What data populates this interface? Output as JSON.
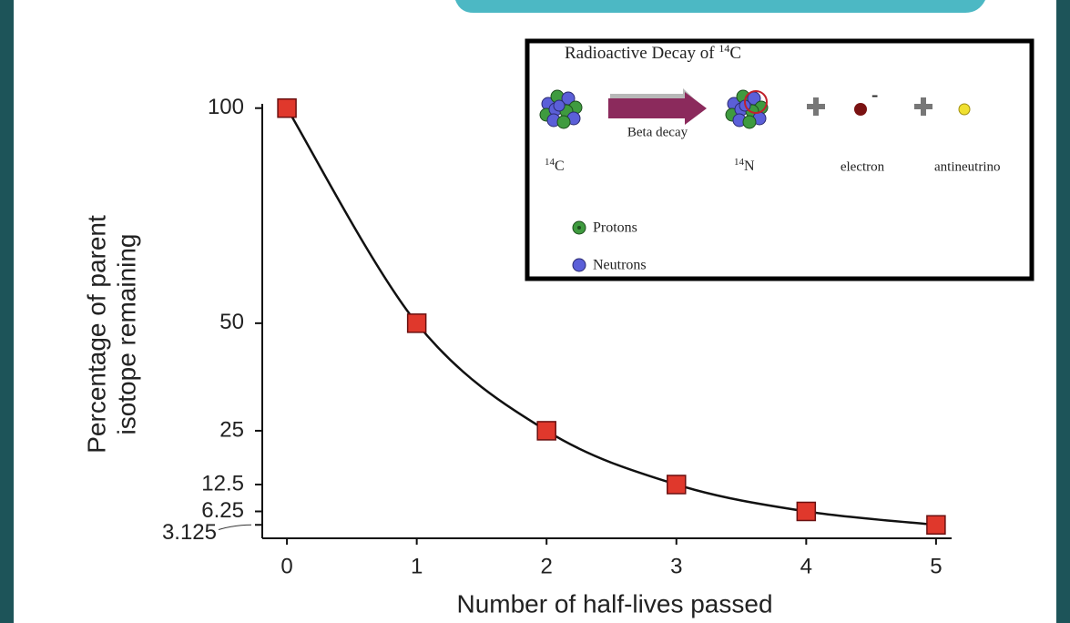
{
  "chart_data": {
    "type": "line",
    "x_label": "Number of half-lives passed",
    "y_label": [
      "Percentage of parent",
      "isotope remaining"
    ],
    "x": [
      0,
      1,
      2,
      3,
      4,
      5
    ],
    "series": [
      {
        "color": "#e0382c",
        "values": [
          100,
          50,
          25,
          12.5,
          6.25,
          3.125
        ]
      }
    ],
    "xlim": [
      -0.19,
      5.12
    ],
    "ylim": [
      0,
      101
    ],
    "xticks": [
      0,
      1,
      2,
      3,
      4,
      5
    ],
    "yticks": [
      100,
      50,
      25,
      12.5,
      6.25,
      3.125
    ],
    "line_color": "#111111",
    "marker": "square"
  },
  "inset": {
    "title": "Radioactive Decay of",
    "title_isotope": {
      "mass": "14",
      "symbol": "C"
    },
    "arrow_label": "Beta decay",
    "parent": {
      "mass": "14",
      "symbol": "C"
    },
    "daughter": {
      "mass": "14",
      "symbol": "N"
    },
    "electron_charge": "-",
    "electron": "electron",
    "antineutrino": "antineutrino",
    "legend": [
      "Protons",
      "Neutrons"
    ]
  }
}
